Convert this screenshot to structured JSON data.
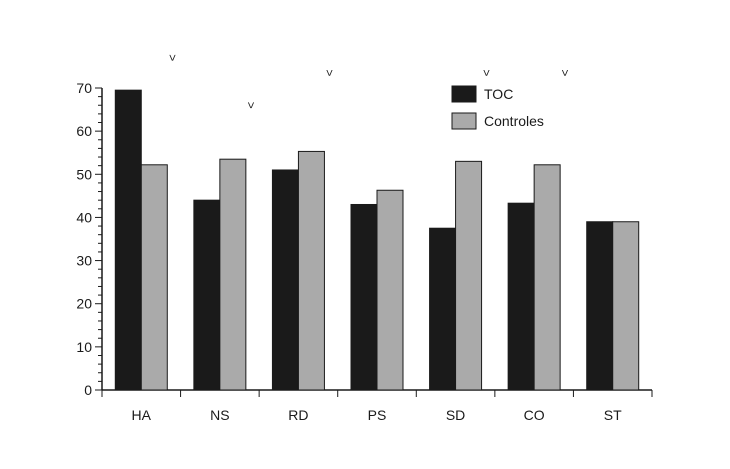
{
  "chart_data": {
    "type": "bar",
    "categories": [
      "HA",
      "NS",
      "RD",
      "PS",
      "SD",
      "CO",
      "ST"
    ],
    "series": [
      {
        "name": "TOC",
        "values": [
          69.5,
          44,
          51,
          43,
          37.5,
          43.3,
          39
        ],
        "color": "#1a1a1a"
      },
      {
        "name": "Controles",
        "values": [
          52.2,
          53.5,
          55.3,
          46.3,
          53,
          52.2,
          39
        ],
        "color": "#aaaaaa"
      }
    ],
    "significance_marks": [
      {
        "category": "HA",
        "symbol": ">",
        "value": 77
      },
      {
        "category": "NS",
        "symbol": ">",
        "value": 66
      },
      {
        "category": "RD",
        "symbol": ">",
        "value": 73.5
      },
      {
        "category": "SD",
        "symbol": ">",
        "value": 73.5
      },
      {
        "category": "CO",
        "symbol": ">",
        "value": 73.5
      }
    ],
    "yticks": [
      0,
      10,
      20,
      30,
      40,
      50,
      60,
      70
    ],
    "ylim": [
      0,
      70
    ],
    "title": "",
    "xlabel": "",
    "ylabel": "",
    "grid": false,
    "legend_position": "top-right"
  }
}
